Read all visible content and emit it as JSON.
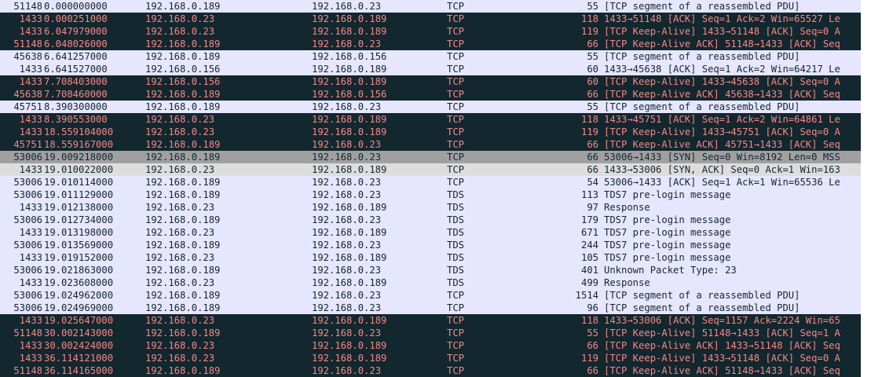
{
  "packet_list": {
    "rows": [
      {
        "src_port": "51148",
        "time": "0.000000000",
        "source": "192.168.0.189",
        "destination": "192.168.0.23",
        "protocol": "TCP",
        "length": "55",
        "info": "[TCP segment of a reassembled PDU]",
        "style": "normal"
      },
      {
        "src_port": "1433",
        "time": "0.000251000",
        "source": "192.168.0.23",
        "destination": "192.168.0.189",
        "protocol": "TCP",
        "length": "118",
        "info": "1433→51148 [ACK] Seq=1 Ack=2 Win=65527 Le",
        "style": "dark"
      },
      {
        "src_port": "1433",
        "time": "6.047979000",
        "source": "192.168.0.23",
        "destination": "192.168.0.189",
        "protocol": "TCP",
        "length": "119",
        "info": "[TCP Keep-Alive] 1433→51148 [ACK] Seq=0 A",
        "style": "dark"
      },
      {
        "src_port": "51148",
        "time": "6.048026000",
        "source": "192.168.0.189",
        "destination": "192.168.0.23",
        "protocol": "TCP",
        "length": "66",
        "info": "[TCP Keep-Alive ACK] 51148→1433 [ACK] Seq",
        "style": "dark"
      },
      {
        "src_port": "45638",
        "time": "6.641257000",
        "source": "192.168.0.189",
        "destination": "192.168.0.156",
        "protocol": "TCP",
        "length": "55",
        "info": "[TCP segment of a reassembled PDU]",
        "style": "normal"
      },
      {
        "src_port": "1433",
        "time": "6.641527000",
        "source": "192.168.0.156",
        "destination": "192.168.0.189",
        "protocol": "TCP",
        "length": "60",
        "info": "1433→45638 [ACK] Seq=1 Ack=2 Win=64217 Le",
        "style": "normal"
      },
      {
        "src_port": "1433",
        "time": "7.708403000",
        "source": "192.168.0.156",
        "destination": "192.168.0.189",
        "protocol": "TCP",
        "length": "60",
        "info": "[TCP Keep-Alive] 1433→45638 [ACK] Seq=0 A",
        "style": "dark"
      },
      {
        "src_port": "45638",
        "time": "7.708460000",
        "source": "192.168.0.189",
        "destination": "192.168.0.156",
        "protocol": "TCP",
        "length": "66",
        "info": "[TCP Keep-Alive ACK] 45638→1433 [ACK] Seq",
        "style": "dark"
      },
      {
        "src_port": "45751",
        "time": "8.390300000",
        "source": "192.168.0.189",
        "destination": "192.168.0.23",
        "protocol": "TCP",
        "length": "55",
        "info": "[TCP segment of a reassembled PDU]",
        "style": "normal"
      },
      {
        "src_port": "1433",
        "time": "8.390553000",
        "source": "192.168.0.23",
        "destination": "192.168.0.189",
        "protocol": "TCP",
        "length": "118",
        "info": "1433→45751 [ACK] Seq=1 Ack=2 Win=64861 Le",
        "style": "dark"
      },
      {
        "src_port": "1433",
        "time": "18.559104000",
        "source": "192.168.0.23",
        "destination": "192.168.0.189",
        "protocol": "TCP",
        "length": "119",
        "info": "[TCP Keep-Alive] 1433→45751 [ACK] Seq=0 A",
        "style": "dark"
      },
      {
        "src_port": "45751",
        "time": "18.559167000",
        "source": "192.168.0.189",
        "destination": "192.168.0.23",
        "protocol": "TCP",
        "length": "66",
        "info": "[TCP Keep-Alive ACK] 45751→1433 [ACK] Seq",
        "style": "dark"
      },
      {
        "src_port": "53006",
        "time": "19.009218000",
        "source": "192.168.0.189",
        "destination": "192.168.0.23",
        "protocol": "TCP",
        "length": "66",
        "info": "53006→1433 [SYN] Seq=0 Win=8192 Len=0 MSS",
        "style": "gray"
      },
      {
        "src_port": "1433",
        "time": "19.010022000",
        "source": "192.168.0.23",
        "destination": "192.168.0.189",
        "protocol": "TCP",
        "length": "66",
        "info": "1433→53006 [SYN, ACK] Seq=0 Ack=1 Win=163",
        "style": "light"
      },
      {
        "src_port": "53006",
        "time": "19.010114000",
        "source": "192.168.0.189",
        "destination": "192.168.0.23",
        "protocol": "TCP",
        "length": "54",
        "info": "53006→1433 [ACK] Seq=1 Ack=1 Win=65536 Le",
        "style": "normal"
      },
      {
        "src_port": "53006",
        "time": "19.011129000",
        "source": "192.168.0.189",
        "destination": "192.168.0.23",
        "protocol": "TDS",
        "length": "113",
        "info": "TDS7 pre-login message",
        "style": "normal"
      },
      {
        "src_port": "1433",
        "time": "19.012138000",
        "source": "192.168.0.23",
        "destination": "192.168.0.189",
        "protocol": "TDS",
        "length": "97",
        "info": "Response",
        "style": "normal"
      },
      {
        "src_port": "53006",
        "time": "19.012734000",
        "source": "192.168.0.189",
        "destination": "192.168.0.23",
        "protocol": "TDS",
        "length": "179",
        "info": "TDS7 pre-login message",
        "style": "normal"
      },
      {
        "src_port": "1433",
        "time": "19.013198000",
        "source": "192.168.0.23",
        "destination": "192.168.0.189",
        "protocol": "TDS",
        "length": "671",
        "info": "TDS7 pre-login message",
        "style": "normal"
      },
      {
        "src_port": "53006",
        "time": "19.013569000",
        "source": "192.168.0.189",
        "destination": "192.168.0.23",
        "protocol": "TDS",
        "length": "244",
        "info": "TDS7 pre-login message",
        "style": "normal"
      },
      {
        "src_port": "1433",
        "time": "19.019152000",
        "source": "192.168.0.23",
        "destination": "192.168.0.189",
        "protocol": "TDS",
        "length": "105",
        "info": "TDS7 pre-login message",
        "style": "normal"
      },
      {
        "src_port": "53006",
        "time": "19.021863000",
        "source": "192.168.0.189",
        "destination": "192.168.0.23",
        "protocol": "TDS",
        "length": "401",
        "info": "Unknown Packet Type: 23",
        "style": "normal"
      },
      {
        "src_port": "1433",
        "time": "19.023608000",
        "source": "192.168.0.23",
        "destination": "192.168.0.189",
        "protocol": "TDS",
        "length": "499",
        "info": "Response",
        "style": "normal"
      },
      {
        "src_port": "53006",
        "time": "19.024962000",
        "source": "192.168.0.189",
        "destination": "192.168.0.23",
        "protocol": "TCP",
        "length": "1514",
        "info": "[TCP segment of a reassembled PDU]",
        "style": "normal"
      },
      {
        "src_port": "53006",
        "time": "19.024969000",
        "source": "192.168.0.189",
        "destination": "192.168.0.23",
        "protocol": "TCP",
        "length": "96",
        "info": "[TCP segment of a reassembled PDU]",
        "style": "normal"
      },
      {
        "src_port": "1433",
        "time": "19.025647000",
        "source": "192.168.0.23",
        "destination": "192.168.0.189",
        "protocol": "TCP",
        "length": "118",
        "info": "1433→53006 [ACK] Seq=1157 Ack=2224 Win=65",
        "style": "dark"
      },
      {
        "src_port": "51148",
        "time": "30.002143000",
        "source": "192.168.0.189",
        "destination": "192.168.0.23",
        "protocol": "TCP",
        "length": "55",
        "info": "[TCP Keep-Alive] 51148→1433 [ACK] Seq=1 A",
        "style": "dark"
      },
      {
        "src_port": "1433",
        "time": "30.002424000",
        "source": "192.168.0.23",
        "destination": "192.168.0.189",
        "protocol": "TCP",
        "length": "66",
        "info": "[TCP Keep-Alive ACK] 1433→51148 [ACK] Seq",
        "style": "dark"
      },
      {
        "src_port": "1433",
        "time": "36.114121000",
        "source": "192.168.0.23",
        "destination": "192.168.0.189",
        "protocol": "TCP",
        "length": "119",
        "info": "[TCP Keep-Alive] 1433→51148 [ACK] Seq=0 A",
        "style": "dark"
      },
      {
        "src_port": "51148",
        "time": "36.114165000",
        "source": "192.168.0.189",
        "destination": "192.168.0.23",
        "protocol": "TCP",
        "length": "66",
        "info": "[TCP Keep-Alive ACK] 51148→1433 [ACK] Seq",
        "style": "dark"
      }
    ]
  }
}
